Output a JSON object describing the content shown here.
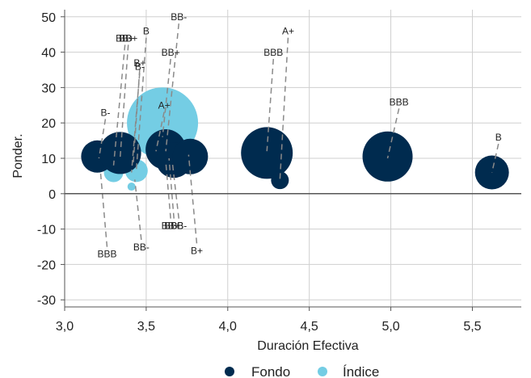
{
  "chart_data": {
    "type": "scatter",
    "xlabel": "Duración Efectiva",
    "ylabel": "Ponder.",
    "xlim": [
      3.0,
      5.8
    ],
    "ylim": [
      -32,
      52
    ],
    "x_ticks": [
      3.0,
      3.5,
      4.0,
      4.5,
      5.0,
      5.5
    ],
    "x_tick_labels": [
      "3,0",
      "3,5",
      "4,0",
      "4,5",
      "5,0",
      "5,5"
    ],
    "y_ticks": [
      -30,
      -20,
      -10,
      0,
      10,
      20,
      30,
      40,
      50
    ],
    "y_tick_labels": [
      "-30",
      "-20",
      "-10",
      "0",
      "10",
      "20",
      "30",
      "40",
      "50"
    ],
    "grid": true,
    "legend": "bottom",
    "colors": {
      "Fondo": "#002b4f",
      "Índice": "#74cde4"
    },
    "series": [
      {
        "name": "Índice",
        "points": [
          {
            "x": 3.3,
            "y": 6.0,
            "r": 12
          },
          {
            "x": 3.44,
            "y": 6.5,
            "r": 14
          },
          {
            "x": 3.41,
            "y": 2.0,
            "r": 5
          },
          {
            "x": 3.6,
            "y": 20.0,
            "r": 44
          }
        ]
      },
      {
        "name": "Fondo",
        "points": [
          {
            "x": 3.2,
            "y": 10.5,
            "r": 20
          },
          {
            "x": 3.34,
            "y": 11.5,
            "r": 26
          },
          {
            "x": 3.62,
            "y": 12.5,
            "r": 25
          },
          {
            "x": 3.67,
            "y": 9.5,
            "r": 22
          },
          {
            "x": 3.77,
            "y": 10.5,
            "r": 22
          },
          {
            "x": 4.24,
            "y": 11.5,
            "r": 32
          },
          {
            "x": 4.32,
            "y": 3.8,
            "r": 11
          },
          {
            "x": 4.98,
            "y": 10.5,
            "r": 31
          },
          {
            "x": 5.62,
            "y": 6.0,
            "r": 21
          }
        ]
      }
    ],
    "annotations": [
      {
        "text": "BB+",
        "tx": 3.37,
        "ty": 43,
        "px": 3.3,
        "py": 8
      },
      {
        "text": "BB+",
        "tx": 3.39,
        "ty": 43,
        "px": 3.34,
        "py": 10
      },
      {
        "text": "B",
        "tx": 3.5,
        "ty": 45,
        "px": 3.44,
        "py": 7
      },
      {
        "text": "B+",
        "tx": 3.46,
        "ty": 36,
        "px": 3.42,
        "py": 8
      },
      {
        "text": "B-",
        "tx": 3.46,
        "ty": 35,
        "px": 3.41,
        "py": 6
      },
      {
        "text": "BB-",
        "tx": 3.7,
        "ty": 49,
        "px": 3.62,
        "py": 12
      },
      {
        "text": "BB+",
        "tx": 3.65,
        "ty": 39,
        "px": 3.6,
        "py": 16
      },
      {
        "text": "A+",
        "tx": 3.61,
        "ty": 24,
        "px": 3.56,
        "py": 12
      },
      {
        "text": "B-",
        "tx": 3.25,
        "ty": 22,
        "px": 3.21,
        "py": 10
      },
      {
        "text": "BBB",
        "tx": 3.26,
        "ty": -18,
        "px": 3.22,
        "py": 6
      },
      {
        "text": "BB-",
        "tx": 3.47,
        "ty": -16,
        "px": 3.43,
        "py": 4
      },
      {
        "text": "BB+",
        "tx": 3.65,
        "ty": -10,
        "px": 3.62,
        "py": 9
      },
      {
        "text": "BBB",
        "tx": 3.67,
        "ty": -10,
        "px": 3.64,
        "py": 10
      },
      {
        "text": "BB-",
        "tx": 3.7,
        "ty": -10,
        "px": 3.66,
        "py": 9
      },
      {
        "text": "B+",
        "tx": 3.81,
        "ty": -17,
        "px": 3.76,
        "py": 11
      },
      {
        "text": "A+",
        "tx": 4.37,
        "ty": 45,
        "px": 4.32,
        "py": 4
      },
      {
        "text": "BBB",
        "tx": 4.28,
        "ty": 39,
        "px": 4.24,
        "py": 12
      },
      {
        "text": "BBB",
        "tx": 5.05,
        "ty": 25,
        "px": 4.98,
        "py": 10
      },
      {
        "text": "B",
        "tx": 5.66,
        "ty": 15,
        "px": 5.62,
        "py": 6
      }
    ]
  }
}
